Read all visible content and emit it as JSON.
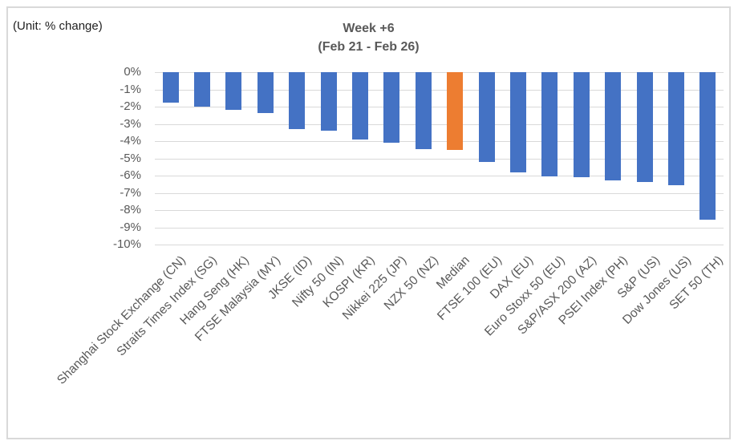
{
  "chart": {
    "unit_label": "(Unit: % change)",
    "title": "Week +6",
    "subtitle": "(Feb 21 - Feb 26)"
  },
  "chart_data": {
    "type": "bar",
    "title": "Week +6",
    "subtitle": "(Feb 21 - Feb 26)",
    "unit": "% change",
    "orientation": "vertical",
    "categories": [
      "Shanghai Stock Exchange (CN)",
      "Straits Times Index (SG)",
      "Hang Seng (HK)",
      "FTSE Malaysia (MY)",
      "JKSE (ID)",
      "Nifty 50 (IN)",
      "KOSPI (KR)",
      "Nikkei 225 (JP)",
      "NZX 50 (NZ)",
      "Median",
      "FTSE 100 (EU)",
      "DAX (EU)",
      "Euro Stoxx 50 (EU)",
      "S&P/ASX 200 (AZ)",
      "PSEI Index (PH)",
      "S&P (US)",
      "Dow Jones (US)",
      "SET 50 (TH)"
    ],
    "values": [
      -1.75,
      -2.0,
      -2.2,
      -2.35,
      -3.3,
      -3.4,
      -3.9,
      -4.1,
      -4.45,
      -4.5,
      -5.2,
      -5.8,
      -6.05,
      -6.1,
      -6.3,
      -6.35,
      -6.55,
      -8.55
    ],
    "highlight_category": "Median",
    "ylim": [
      -10,
      0
    ],
    "ytick_step": 1,
    "ytick_labels": [
      "0%",
      "-1%",
      "-2%",
      "-3%",
      "-4%",
      "-5%",
      "-6%",
      "-7%",
      "-8%",
      "-9%",
      "-10%"
    ],
    "grid": "horizontal",
    "legend": "none",
    "colors": {
      "bar": "#4472C4",
      "highlight": "#ED7D31",
      "grid": "#D9D9D9",
      "axis_text": "#595959",
      "title_text": "#595959",
      "unit_text": "#1F1F1F",
      "frame_border": "#D9D9D9",
      "background": "#FFFFFF"
    }
  }
}
